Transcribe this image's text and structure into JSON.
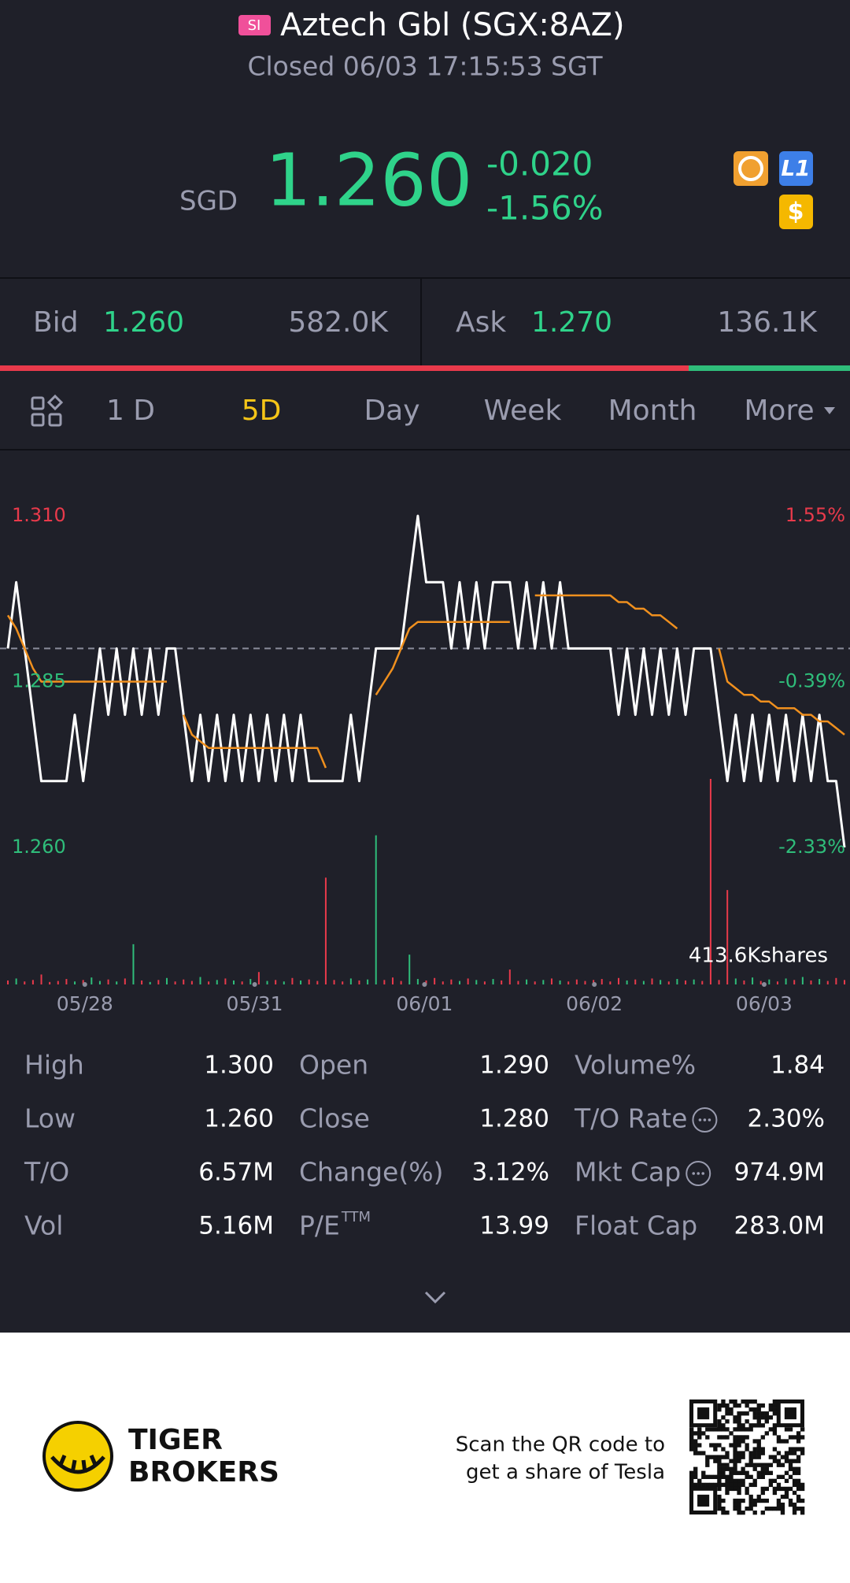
{
  "header": {
    "badge": "SI",
    "title": "Aztech Gbl (SGX:8AZ)",
    "status": "Closed 06/03 17:15:53 SGT"
  },
  "quote": {
    "currency": "SGD",
    "price": "1.260",
    "change": "-0.020",
    "change_pct": "-1.56%",
    "badges": [
      "L1",
      "$"
    ]
  },
  "order_book": {
    "bid_label": "Bid",
    "bid": "1.260",
    "bid_size": "582.0K",
    "ask_label": "Ask",
    "ask": "1.270",
    "ask_size": "136.1K"
  },
  "tabs": [
    "1 D",
    "5D",
    "Day",
    "Week",
    "Month",
    "More"
  ],
  "chart_data": {
    "type": "line",
    "x": [
      0,
      1,
      2,
      3,
      4,
      5,
      6,
      7,
      8,
      9,
      10,
      11,
      12,
      13,
      14,
      15,
      16,
      17,
      18,
      19,
      20,
      21,
      22,
      23,
      24,
      25,
      26,
      27,
      28,
      29,
      30,
      31,
      32,
      33,
      34,
      35,
      36,
      37,
      38,
      39,
      40,
      41,
      42,
      43,
      44,
      45,
      46,
      47,
      48,
      49,
      50,
      51,
      52,
      53,
      54,
      55,
      56,
      57,
      58,
      59,
      60,
      61,
      62,
      63,
      64,
      65,
      66,
      67,
      68,
      69,
      70,
      71,
      72,
      73,
      74,
      75,
      76,
      77,
      78,
      79,
      80,
      81,
      82,
      83,
      84,
      85,
      86,
      87,
      88,
      89,
      90,
      91,
      92,
      93,
      94,
      95,
      96,
      97,
      98,
      99,
      100
    ],
    "xlim": [
      0,
      100
    ],
    "xticks": [
      {
        "value": 9.2,
        "label": "05/28"
      },
      {
        "value": 29.5,
        "label": "05/31"
      },
      {
        "value": 49.8,
        "label": "06/01"
      },
      {
        "value": 70.1,
        "label": "06/02"
      },
      {
        "value": 90.4,
        "label": "06/03"
      }
    ],
    "ylim": [
      1.26,
      1.31
    ],
    "yticks": [
      {
        "value": 1.31,
        "label": "1.310"
      },
      {
        "value": 1.285,
        "label": "1.285"
      },
      {
        "value": 1.26,
        "label": "1.260"
      }
    ],
    "y2lim": [
      -2.33,
      1.55
    ],
    "y2ticks": [
      {
        "value": 1.55,
        "label": "1.55%"
      },
      {
        "value": -0.39,
        "label": "-0.39%"
      },
      {
        "value": -2.33,
        "label": "-2.33%"
      }
    ],
    "reference_line": 1.29,
    "series": [
      {
        "color": "#ffffff",
        "values": [
          1.29,
          1.3,
          1.29,
          1.28,
          1.27,
          1.27,
          1.27,
          1.27,
          1.28,
          1.27,
          1.28,
          1.29,
          1.28,
          1.29,
          1.28,
          1.29,
          1.28,
          1.29,
          1.28,
          1.29,
          1.29,
          1.28,
          1.27,
          1.28,
          1.27,
          1.28,
          1.27,
          1.28,
          1.27,
          1.28,
          1.27,
          1.28,
          1.27,
          1.28,
          1.27,
          1.28,
          1.27,
          1.27,
          1.27,
          1.27,
          1.27,
          1.28,
          1.27,
          1.28,
          1.29,
          1.29,
          1.29,
          1.29,
          1.3,
          1.31,
          1.3,
          1.3,
          1.3,
          1.29,
          1.3,
          1.29,
          1.3,
          1.29,
          1.3,
          1.3,
          1.3,
          1.29,
          1.3,
          1.29,
          1.3,
          1.29,
          1.3,
          1.29,
          1.29,
          1.29,
          1.29,
          1.29,
          1.29,
          1.28,
          1.29,
          1.28,
          1.29,
          1.28,
          1.29,
          1.28,
          1.29,
          1.28,
          1.29,
          1.29,
          1.29,
          1.28,
          1.27,
          1.28,
          1.27,
          1.28,
          1.27,
          1.28,
          1.27,
          1.28,
          1.27,
          1.28,
          1.27,
          1.28,
          1.27,
          1.27,
          1.26
        ]
      },
      {
        "color": "#f0901e",
        "values": [
          1.295,
          1.293,
          1.29,
          1.287,
          1.285,
          1.285,
          1.285,
          1.285,
          1.285,
          1.285,
          1.285,
          1.285,
          1.285,
          1.285,
          1.285,
          1.285,
          1.285,
          1.285,
          1.285,
          1.285,
          null,
          1.28,
          1.277,
          1.276,
          1.275,
          1.275,
          1.275,
          1.275,
          1.275,
          1.275,
          1.275,
          1.275,
          1.275,
          1.275,
          1.275,
          1.275,
          1.275,
          1.275,
          1.272,
          null,
          null,
          null,
          null,
          null,
          1.283,
          1.285,
          1.287,
          1.29,
          1.293,
          1.294,
          1.294,
          1.294,
          1.294,
          1.294,
          1.294,
          1.294,
          1.294,
          1.294,
          1.294,
          1.294,
          1.294,
          null,
          null,
          1.298,
          1.298,
          1.298,
          1.298,
          1.298,
          1.298,
          1.298,
          1.298,
          1.298,
          1.298,
          1.297,
          1.297,
          1.296,
          1.296,
          1.295,
          1.295,
          1.294,
          1.293,
          null,
          null,
          null,
          null,
          1.29,
          1.285,
          1.284,
          1.283,
          1.283,
          1.282,
          1.282,
          1.281,
          1.281,
          1.281,
          1.28,
          1.28,
          1.279,
          1.279,
          1.278,
          1.277
        ]
      }
    ],
    "volume": [
      8000,
      12000,
      6000,
      9000,
      20000,
      5000,
      7000,
      11000,
      6000,
      9000,
      14000,
      7000,
      10000,
      6000,
      12000,
      81000,
      8000,
      5000,
      9000,
      13000,
      6000,
      10000,
      7000,
      15000,
      6000,
      9000,
      12000,
      8000,
      6000,
      11000,
      25000,
      7000,
      9000,
      6000,
      13000,
      8000,
      10000,
      7000,
      215000,
      9000,
      6000,
      12000,
      8000,
      10000,
      300000,
      9000,
      14000,
      7000,
      60000,
      11000,
      8000,
      13000,
      6000,
      10000,
      7000,
      12000,
      9000,
      6000,
      11000,
      8000,
      30000,
      7000,
      10000,
      6000,
      9000,
      12000,
      8000,
      6000,
      10000,
      7000,
      9000,
      11000,
      6000,
      13000,
      8000,
      10000,
      7000,
      12000,
      9000,
      6000,
      11000,
      8000,
      10000,
      7000,
      413600,
      9000,
      190000,
      12000,
      8000,
      14000,
      7000,
      10000,
      6000,
      12000,
      9000,
      15000,
      8000,
      11000,
      7000,
      13000,
      9000
    ],
    "vlim": [
      0,
      413600
    ],
    "volume_label": "413.6Kshares",
    "up_color": "#2fbd7a",
    "down_color": "#e83a4b"
  },
  "stats": [
    {
      "label": "High",
      "value": "1.300"
    },
    {
      "label": "Open",
      "value": "1.290"
    },
    {
      "label": "Volume%",
      "value": "1.84"
    },
    {
      "label": "Low",
      "value": "1.260"
    },
    {
      "label": "Close",
      "value": "1.280"
    },
    {
      "label": "T/O Rate",
      "value": "2.30%",
      "info": true
    },
    {
      "label": "T/O",
      "value": "6.57M"
    },
    {
      "label": "Change(%)",
      "value": "3.12%"
    },
    {
      "label": "Mkt Cap",
      "value": "974.9M",
      "info": true
    },
    {
      "label": "Vol",
      "value": "5.16M"
    },
    {
      "label": "P/E",
      "sup": "TTM",
      "value": "13.99"
    },
    {
      "label": "Float Cap",
      "value": "283.0M"
    }
  ],
  "footer": {
    "brand": [
      "TIGER",
      "BROKERS"
    ],
    "promo": [
      "Scan the QR code to",
      "get a share of Tesla"
    ]
  }
}
